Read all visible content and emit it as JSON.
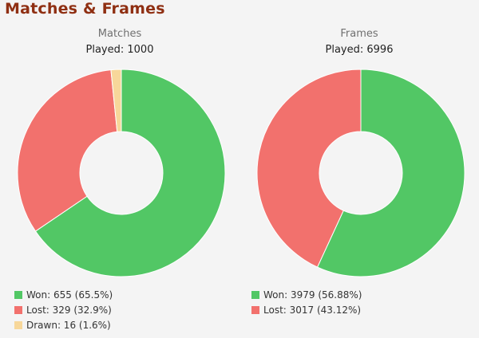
{
  "page_title": "Matches & Frames",
  "colors": {
    "won": "#52c765",
    "lost": "#f2716d",
    "drawn": "#f7d79a"
  },
  "chart_data": [
    {
      "type": "pie",
      "title": "Matches",
      "subtitle": "Played: 1000",
      "labels": [
        "Won",
        "Lost",
        "Drawn"
      ],
      "values": [
        655,
        329,
        16
      ],
      "legend": [
        "Won: 655 (65.5%)",
        "Lost: 329 (32.9%)",
        "Drawn: 16 (1.6%)"
      ],
      "legend_position": "bottom-left"
    },
    {
      "type": "pie",
      "title": "Frames",
      "subtitle": "Played: 6996",
      "labels": [
        "Won",
        "Lost"
      ],
      "values": [
        3979,
        3017
      ],
      "legend": [
        "Won: 3979 (56.88%)",
        "Lost: 3017 (43.12%)"
      ],
      "legend_position": "bottom-left"
    }
  ]
}
